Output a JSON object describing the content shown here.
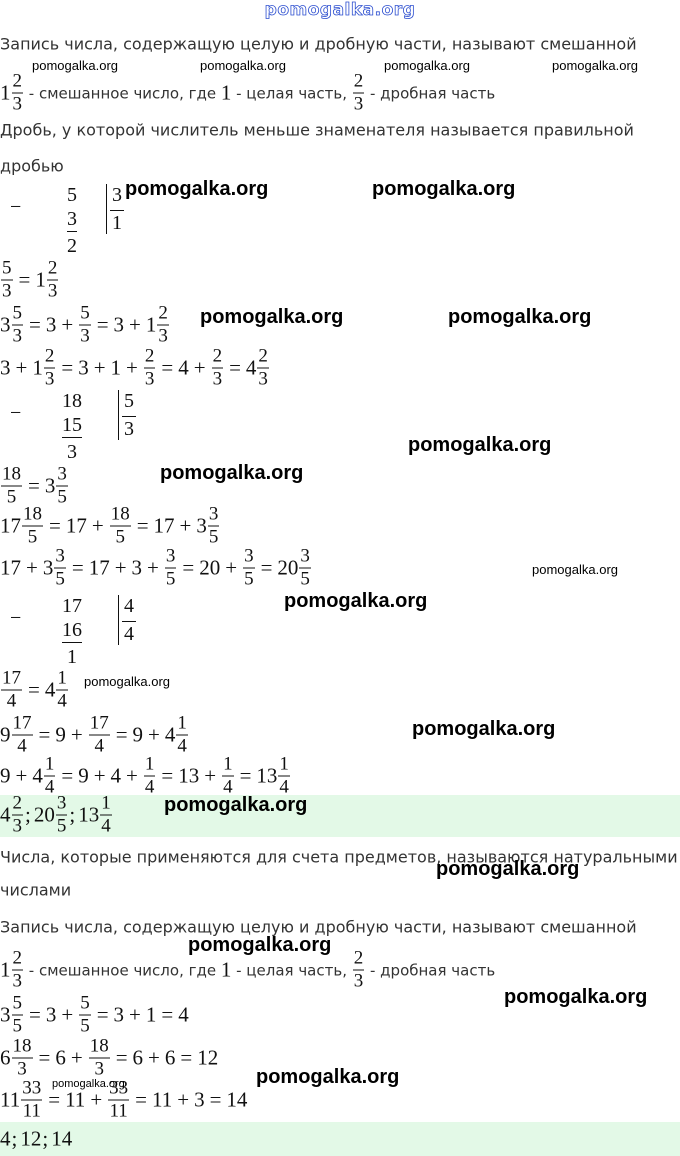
{
  "header": {
    "site": "pomogalka.org"
  },
  "blocks": [
    {
      "type": "text",
      "text": "Запись числа, содержащую целую и дробную части, называют смешанной"
    },
    {
      "type": "math",
      "items": [
        {
          "w": "1",
          "n": "2",
          "d": "3"
        },
        {
          "txt": " - смешанное число, где "
        },
        "1",
        {
          "txt": " - целая часть, "
        },
        {
          "n": "2",
          "d": "3"
        },
        {
          "txt": " - дробная часть"
        }
      ]
    },
    {
      "type": "text",
      "text": "Дробь, у которой числитель меньше знаменателя называется правильной"
    },
    {
      "type": "text",
      "text": "дробью"
    },
    {
      "type": "division",
      "sign": "−",
      "dividend": "5",
      "subtrahend": "3",
      "remainder": "2",
      "divisor": "3",
      "quotient": "1"
    },
    {
      "type": "math",
      "items": [
        {
          "n": "5",
          "d": "3"
        },
        "=",
        {
          "w": "1",
          "n": "2",
          "d": "3"
        }
      ]
    },
    {
      "type": "math",
      "items": [
        {
          "w": "3",
          "n": "5",
          "d": "3"
        },
        "=",
        "3",
        "+",
        {
          "n": "5",
          "d": "3"
        },
        "=",
        "3",
        "+",
        {
          "w": "1",
          "n": "2",
          "d": "3"
        }
      ]
    },
    {
      "type": "math",
      "items": [
        "3",
        "+",
        {
          "w": "1",
          "n": "2",
          "d": "3"
        },
        "=",
        "3",
        "+",
        "1",
        "+",
        {
          "n": "2",
          "d": "3"
        },
        "=",
        "4",
        "+",
        {
          "n": "2",
          "d": "3"
        },
        "=",
        {
          "w": "4",
          "n": "2",
          "d": "3"
        }
      ]
    },
    {
      "type": "division",
      "sign": "−",
      "dividend": "18",
      "subtrahend": "15",
      "remainder": "3",
      "divisor": "5",
      "quotient": "3"
    },
    {
      "type": "math",
      "items": [
        {
          "n": "18",
          "d": "5"
        },
        "=",
        {
          "w": "3",
          "n": "3",
          "d": "5"
        }
      ]
    },
    {
      "type": "math",
      "items": [
        {
          "w": "17",
          "n": "18",
          "d": "5"
        },
        "=",
        "17",
        "+",
        {
          "n": "18",
          "d": "5"
        },
        "=",
        "17",
        "+",
        {
          "w": "3",
          "n": "3",
          "d": "5"
        }
      ]
    },
    {
      "type": "math",
      "items": [
        "17",
        "+",
        {
          "w": "3",
          "n": "3",
          "d": "5"
        },
        "=",
        "17",
        "+",
        "3",
        "+",
        {
          "n": "3",
          "d": "5"
        },
        "=",
        "20",
        "+",
        {
          "n": "3",
          "d": "5"
        },
        "=",
        {
          "w": "20",
          "n": "3",
          "d": "5"
        }
      ]
    },
    {
      "type": "division",
      "sign": "−",
      "dividend": "17",
      "subtrahend": "16",
      "remainder": "1",
      "divisor": "4",
      "quotient": "4"
    },
    {
      "type": "math",
      "items": [
        {
          "n": "17",
          "d": "4"
        },
        "=",
        {
          "w": "4",
          "n": "1",
          "d": "4"
        }
      ]
    },
    {
      "type": "math",
      "items": [
        {
          "w": "9",
          "n": "17",
          "d": "4"
        },
        "=",
        "9",
        "+",
        {
          "n": "17",
          "d": "4"
        },
        "=",
        "9",
        "+",
        {
          "w": "4",
          "n": "1",
          "d": "4"
        }
      ]
    },
    {
      "type": "math",
      "items": [
        "9",
        "+",
        {
          "w": "4",
          "n": "1",
          "d": "4"
        },
        "=",
        "9",
        "+",
        "4",
        "+",
        {
          "n": "1",
          "d": "4"
        },
        "=",
        "13",
        "+",
        {
          "n": "1",
          "d": "4"
        },
        "=",
        {
          "w": "13",
          "n": "1",
          "d": "4"
        }
      ]
    },
    {
      "type": "answer",
      "items": [
        {
          "w": "4",
          "n": "2",
          "d": "3"
        },
        ";",
        {
          "w": "20",
          "n": "3",
          "d": "5"
        },
        ";",
        {
          "w": "13",
          "n": "1",
          "d": "4"
        }
      ]
    },
    {
      "type": "text",
      "text": "Числа, которые применяются для счета предметов, называются натуральными"
    },
    {
      "type": "text",
      "text": "числами"
    },
    {
      "type": "text",
      "text": "Запись числа, содержащую целую и дробную части, называют смешанной"
    },
    {
      "type": "math",
      "items": [
        {
          "w": "1",
          "n": "2",
          "d": "3"
        },
        {
          "txt": " - смешанное число, где "
        },
        "1",
        {
          "txt": " - целая часть, "
        },
        {
          "n": "2",
          "d": "3"
        },
        {
          "txt": " - дробная часть"
        }
      ]
    },
    {
      "type": "math",
      "items": [
        {
          "w": "3",
          "n": "5",
          "d": "5"
        },
        "=",
        "3",
        "+",
        {
          "n": "5",
          "d": "5"
        },
        "=",
        "3",
        "+",
        "1",
        "=",
        "4"
      ]
    },
    {
      "type": "math",
      "items": [
        {
          "w": "6",
          "n": "18",
          "d": "3"
        },
        "=",
        "6",
        "+",
        {
          "n": "18",
          "d": "3"
        },
        "=",
        "6",
        "+",
        "6",
        "=",
        "12"
      ]
    },
    {
      "type": "math",
      "items": [
        {
          "w": "11",
          "n": "33",
          "d": "11"
        },
        "=",
        "11",
        "+",
        {
          "n": "33",
          "d": "11"
        },
        "=",
        "11",
        "+",
        "3",
        "=",
        "14"
      ]
    },
    {
      "type": "answer",
      "items": [
        "4",
        ";",
        "12",
        ";",
        "14"
      ]
    }
  ],
  "watermarks": [
    "pomogalka.org",
    "pomogalka.org",
    "pomogalka.org",
    "pomogalka.org",
    "pomogalka.org",
    "pomogalka.org",
    "pomogalka.org",
    "pomogalka.org",
    "pomogalka.org",
    "pomogalka.org",
    "pomogalka.org",
    "pomogalka.org",
    "pomogalka.org",
    "pomogalka.org",
    "pomogalka.org",
    "pomogalka.org",
    "pomogalka.org",
    "pomogalka.org",
    "pomogalka.org",
    "pomogalka.org"
  ]
}
